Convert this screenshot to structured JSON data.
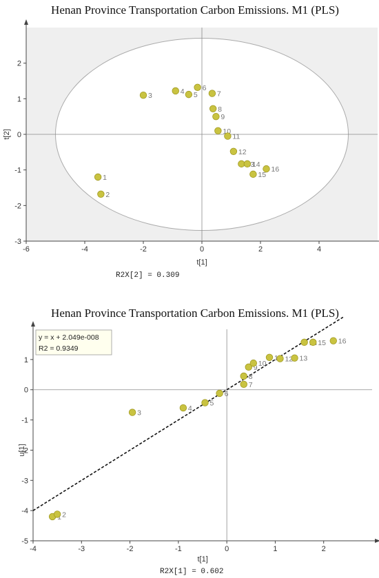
{
  "chart_data": [
    {
      "type": "scatter",
      "title": "Henan Province Transportation Carbon Emissions. M1 (PLS)",
      "xlabel": "t[1]",
      "ylabel": "t[2]",
      "xlim": [
        -6,
        6
      ],
      "ylim": [
        -3,
        3
      ],
      "xticks": [
        -6,
        -4,
        -2,
        0,
        2,
        4
      ],
      "yticks": [
        -3,
        -2,
        -1,
        0,
        1,
        2
      ],
      "footer": "R2X[2] = 0.309",
      "ellipse": true,
      "points": [
        {
          "label": "1",
          "x": -3.55,
          "y": -1.2
        },
        {
          "label": "2",
          "x": -3.45,
          "y": -1.68
        },
        {
          "label": "3",
          "x": -2.0,
          "y": 1.1
        },
        {
          "label": "4",
          "x": -0.9,
          "y": 1.22
        },
        {
          "label": "5",
          "x": -0.45,
          "y": 1.12
        },
        {
          "label": "6",
          "x": -0.15,
          "y": 1.32
        },
        {
          "label": "7",
          "x": 0.35,
          "y": 1.15
        },
        {
          "label": "8",
          "x": 0.38,
          "y": 0.72
        },
        {
          "label": "9",
          "x": 0.48,
          "y": 0.5
        },
        {
          "label": "10",
          "x": 0.55,
          "y": 0.1
        },
        {
          "label": "11",
          "x": 0.88,
          "y": -0.05
        },
        {
          "label": "12",
          "x": 1.08,
          "y": -0.48
        },
        {
          "label": "13",
          "x": 1.35,
          "y": -0.83
        },
        {
          "label": "14",
          "x": 1.55,
          "y": -0.83
        },
        {
          "label": "15",
          "x": 1.75,
          "y": -1.12
        },
        {
          "label": "16",
          "x": 2.2,
          "y": -0.97
        }
      ]
    },
    {
      "type": "scatter",
      "title": "Henan Province Transportation Carbon Emissions. M1 (PLS)",
      "xlabel": "t[1]",
      "ylabel": "u[1]",
      "xlim": [
        -4,
        3
      ],
      "ylim": [
        -5,
        2
      ],
      "xticks": [
        -4,
        -3,
        -2,
        -1,
        0,
        1,
        2
      ],
      "yticks": [
        -5,
        -4,
        -3,
        -2,
        -1,
        0,
        1
      ],
      "footer": "R2X[1] = 0.602",
      "regression": {
        "equation": "y = x + 2.049e-008",
        "r2": "R2 = 0.9349",
        "slope": 1,
        "intercept": 0
      },
      "points": [
        {
          "label": "1",
          "x": -3.6,
          "y": -4.2
        },
        {
          "label": "2",
          "x": -3.5,
          "y": -4.12
        },
        {
          "label": "3",
          "x": -1.95,
          "y": -0.75
        },
        {
          "label": "4",
          "x": -0.9,
          "y": -0.6
        },
        {
          "label": "5",
          "x": -0.45,
          "y": -0.43
        },
        {
          "label": "6",
          "x": -0.15,
          "y": -0.12
        },
        {
          "label": "7",
          "x": 0.35,
          "y": 0.18
        },
        {
          "label": "8",
          "x": 0.35,
          "y": 0.45
        },
        {
          "label": "9",
          "x": 0.45,
          "y": 0.75
        },
        {
          "label": "10",
          "x": 0.55,
          "y": 0.88
        },
        {
          "label": "11",
          "x": 0.88,
          "y": 1.07
        },
        {
          "label": "12",
          "x": 1.1,
          "y": 1.03
        },
        {
          "label": "13",
          "x": 1.4,
          "y": 1.05
        },
        {
          "label": "14",
          "x": 1.6,
          "y": 1.57
        },
        {
          "label": "15",
          "x": 1.78,
          "y": 1.57
        },
        {
          "label": "16",
          "x": 2.2,
          "y": 1.62
        }
      ]
    }
  ]
}
